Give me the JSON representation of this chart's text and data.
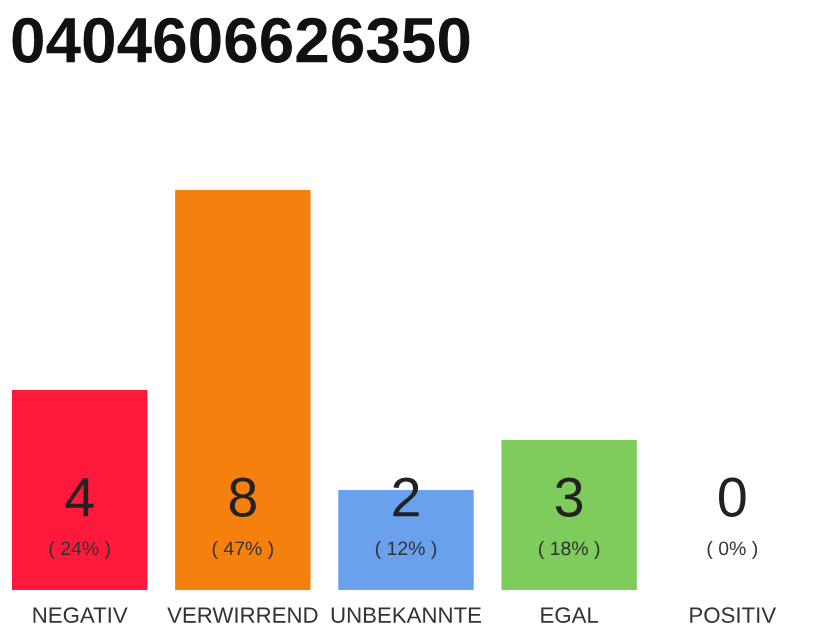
{
  "chart_data": {
    "type": "bar",
    "title": "0404606626350",
    "categories": [
      "NEGATIV",
      "VERWIRREND",
      "UNBEKANNTE",
      "EGAL",
      "POSITIV"
    ],
    "grid": false,
    "data_labels": true,
    "series": [
      {
        "colors": [
          "#ff1a3c",
          "#f5800e",
          "#6aa1ec",
          "#7dcc5c",
          "#cccccc"
        ],
        "values": [
          4,
          8,
          2,
          3,
          0
        ]
      }
    ],
    "annotations": [
      "( 24% )",
      "( 47% )",
      "( 12% )",
      "( 18% )",
      "( 0% )"
    ]
  }
}
